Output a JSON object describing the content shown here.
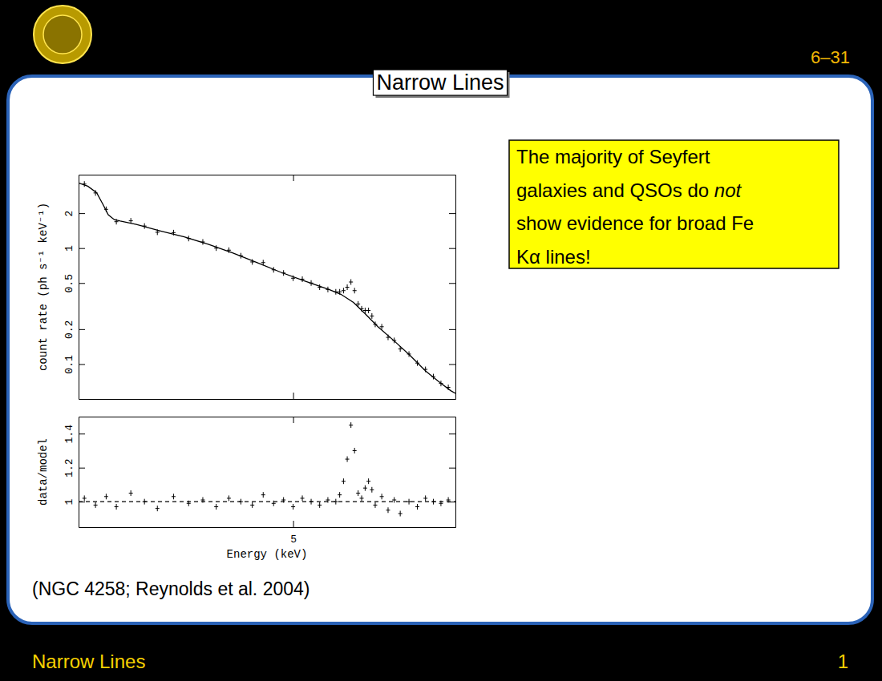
{
  "slide": {
    "page_number": "6–31",
    "title": "Narrow Lines",
    "callout": [
      [
        {
          "text": "The majority of Seyfert"
        }
      ],
      [
        {
          "text": "galaxies and QSOs do "
        },
        {
          "text": "not",
          "italic": true
        }
      ],
      [
        {
          "text": "show evidence for broad Fe"
        }
      ],
      [
        {
          "text": "Kα lines!"
        }
      ]
    ],
    "caption": "(NGC 4258; Reynolds et al. 2004)",
    "footer": "Narrow Lines",
    "footer_page": "1"
  },
  "chart_data": [
    {
      "type": "scatter",
      "log": true,
      "grid": false,
      "tick_labels": "y",
      "ylabel": "count rate (ph s⁻¹ keV⁻¹)",
      "xlim": [
        2,
        10
      ],
      "xticks": [
        5
      ],
      "ylim": [
        0.05,
        4.3
      ],
      "yticks": [
        0.1,
        0.2,
        0.5,
        1,
        2
      ],
      "series": [
        {
          "color": "#000000",
          "marker": "cross",
          "x": [
            2.05,
            2.15,
            2.25,
            2.35,
            2.5,
            2.65,
            2.8,
            3.0,
            3.2,
            3.4,
            3.6,
            3.8,
            4.0,
            4.2,
            4.4,
            4.6,
            4.8,
            5.0,
            5.2,
            5.4,
            5.6,
            5.8,
            6.0,
            6.1,
            6.2,
            6.3,
            6.4,
            6.5,
            6.6,
            6.7,
            6.8,
            6.9,
            7.0,
            7.1,
            7.3,
            7.5,
            7.7,
            7.9,
            8.2,
            8.5,
            8.8,
            9.1,
            9.4,
            9.7
          ],
          "values": [
            3.57,
            2.99,
            2.16,
            1.69,
            1.72,
            1.55,
            1.37,
            1.36,
            1.21,
            1.13,
            1.0,
            0.96,
            0.86,
            0.76,
            0.75,
            0.65,
            0.61,
            0.55,
            0.54,
            0.5,
            0.46,
            0.44,
            0.42,
            0.42,
            0.43,
            0.46,
            0.51,
            0.43,
            0.33,
            0.3,
            0.29,
            0.29,
            0.26,
            0.22,
            0.21,
            0.17,
            0.16,
            0.135,
            0.122,
            0.102,
            0.09,
            0.078,
            0.068,
            0.063
          ]
        },
        {
          "type": "line",
          "color": "#000000",
          "line_style": "solid",
          "x": [
            2.0,
            2.08,
            2.16,
            2.22,
            2.27,
            2.33,
            2.39,
            2.56,
            2.83,
            3.14,
            3.48,
            3.86,
            4.29,
            4.74,
            5.26,
            5.83,
            6.13,
            6.47,
            6.81,
            7.18,
            7.68,
            8.22,
            8.81,
            9.3,
            9.8,
            10.0
          ],
          "values": [
            3.65,
            3.42,
            3.01,
            2.38,
            1.94,
            1.76,
            1.71,
            1.6,
            1.41,
            1.25,
            1.08,
            0.91,
            0.75,
            0.62,
            0.52,
            0.44,
            0.4,
            0.34,
            0.27,
            0.21,
            0.16,
            0.12,
            0.087,
            0.071,
            0.059,
            0.056
          ]
        }
      ]
    },
    {
      "type": "scatter",
      "log": "x",
      "grid": false,
      "xlabel": "Energy (keV)",
      "ylabel": "data/model",
      "xlim": [
        2,
        10
      ],
      "xticks": [
        5
      ],
      "ylim": [
        0.85,
        1.5
      ],
      "yticks": [
        1,
        1.2,
        1.4
      ],
      "series": [
        {
          "color": "#000000",
          "marker": "cross",
          "x": [
            2.05,
            2.15,
            2.25,
            2.35,
            2.5,
            2.65,
            2.8,
            3.0,
            3.2,
            3.4,
            3.6,
            3.8,
            4.0,
            4.2,
            4.4,
            4.6,
            4.8,
            5.0,
            5.2,
            5.4,
            5.6,
            5.8,
            6.0,
            6.1,
            6.2,
            6.3,
            6.4,
            6.5,
            6.6,
            6.7,
            6.8,
            6.9,
            7.0,
            7.1,
            7.3,
            7.5,
            7.7,
            7.9,
            8.2,
            8.5,
            8.8,
            9.1,
            9.4,
            9.7
          ],
          "values": [
            1.02,
            0.98,
            1.03,
            0.97,
            1.05,
            1.0,
            0.96,
            1.03,
            0.99,
            1.01,
            0.97,
            1.02,
            1.0,
            0.98,
            1.04,
            0.99,
            1.01,
            0.97,
            1.02,
            1.0,
            0.98,
            1.01,
            1.0,
            1.04,
            1.12,
            1.25,
            1.45,
            1.3,
            1.05,
            1.02,
            1.08,
            1.12,
            1.07,
            0.98,
            1.03,
            0.95,
            1.01,
            0.93,
            1.0,
            0.97,
            1.02,
            1.0,
            0.99,
            1.01
          ]
        },
        {
          "type": "line",
          "color": "#000000",
          "line_style": "dashed",
          "x": [
            2,
            10
          ],
          "values": [
            1,
            1
          ]
        }
      ]
    }
  ]
}
